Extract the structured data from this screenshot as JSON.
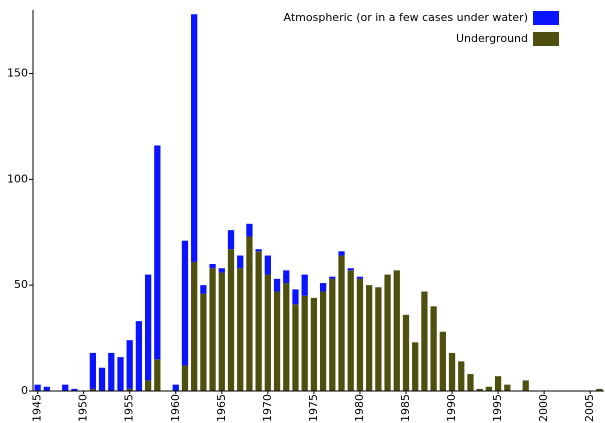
{
  "chart_data": {
    "type": "stacked-bar",
    "x": [
      1945,
      1946,
      1947,
      1948,
      1949,
      1950,
      1951,
      1952,
      1953,
      1954,
      1955,
      1956,
      1957,
      1958,
      1959,
      1960,
      1961,
      1962,
      1963,
      1964,
      1965,
      1966,
      1967,
      1968,
      1969,
      1970,
      1971,
      1972,
      1973,
      1974,
      1975,
      1976,
      1977,
      1978,
      1979,
      1980,
      1981,
      1982,
      1983,
      1984,
      1985,
      1986,
      1987,
      1988,
      1989,
      1990,
      1991,
      1992,
      1993,
      1994,
      1995,
      1996,
      1997,
      1998,
      1999,
      2000,
      2001,
      2002,
      2003,
      2004,
      2005,
      2006
    ],
    "series": [
      {
        "name": "Underground",
        "color": "#4f4f0f",
        "values": [
          0,
          0,
          0,
          0,
          0,
          0,
          1,
          0,
          0,
          0,
          1,
          0,
          5,
          15,
          0,
          0,
          12,
          61,
          46,
          58,
          56,
          67,
          58,
          73,
          66,
          55,
          47,
          51,
          41,
          45,
          44,
          47,
          53,
          64,
          57,
          53,
          50,
          49,
          55,
          57,
          36,
          23,
          47,
          40,
          28,
          18,
          14,
          8,
          1,
          2,
          7,
          3,
          0,
          5,
          0,
          0,
          0,
          0,
          0,
          0,
          0,
          1
        ]
      },
      {
        "name": "Atmospheric (or in a few cases under water)",
        "color": "#0a14ff",
        "values": [
          3,
          2,
          0,
          3,
          1,
          0,
          17,
          11,
          18,
          16,
          23,
          33,
          50,
          101,
          0,
          3,
          59,
          117,
          4,
          2,
          2,
          9,
          6,
          6,
          1,
          9,
          6,
          6,
          7,
          10,
          0,
          4,
          1,
          2,
          1,
          1,
          0,
          0,
          0,
          0,
          0,
          0,
          0,
          0,
          0,
          0,
          0,
          0,
          0,
          0,
          0,
          0,
          0,
          0,
          0,
          0,
          0,
          0,
          0,
          0,
          0,
          0
        ]
      }
    ],
    "xlim": [
      1944.5,
      2006.5
    ],
    "xticks": [
      1945,
      1950,
      1955,
      1960,
      1965,
      1970,
      1975,
      1980,
      1985,
      1990,
      1995,
      2000,
      2005
    ],
    "ylim": [
      0,
      180
    ],
    "yticks": [
      0,
      50,
      100,
      150
    ]
  }
}
